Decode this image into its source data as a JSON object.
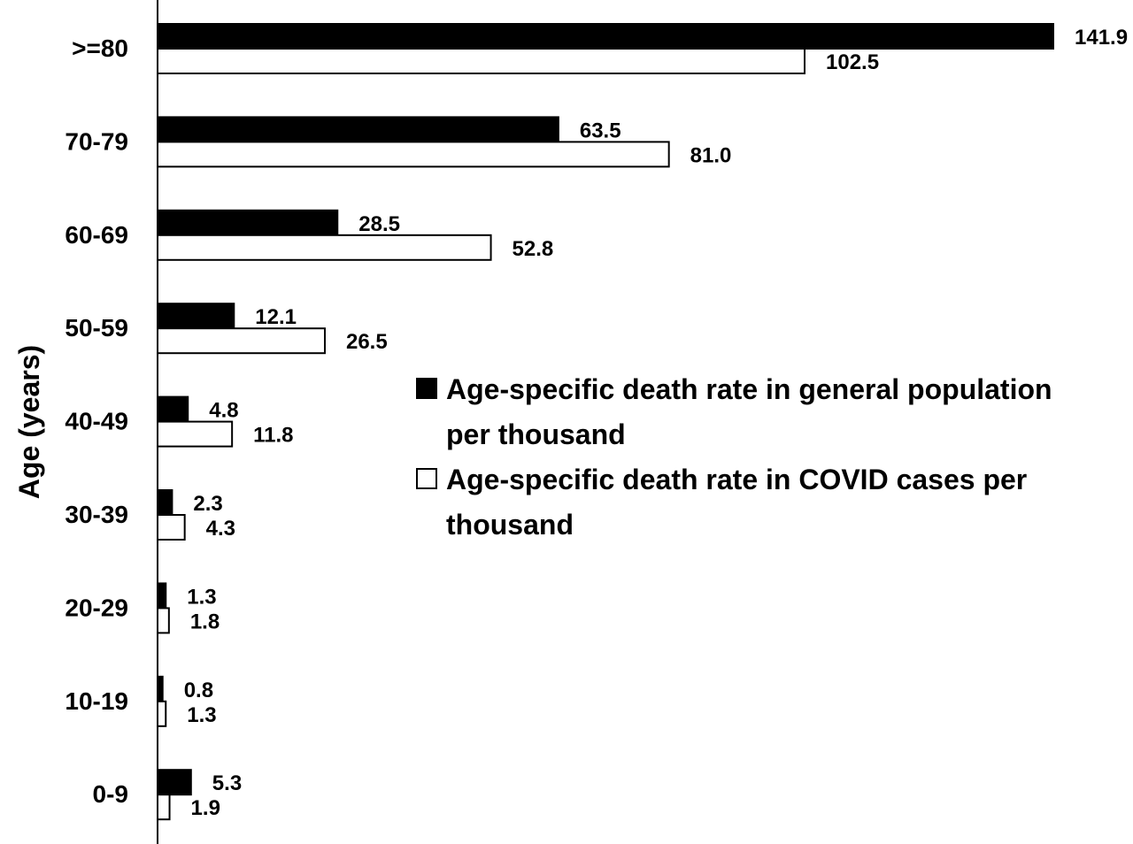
{
  "chart_data": {
    "type": "bar",
    "orientation": "horizontal",
    "categories": [
      ">=80",
      "70-79",
      "60-69",
      "50-59",
      "40-49",
      "30-39",
      "20-29",
      "10-19",
      "0-9"
    ],
    "series": [
      {
        "name": "Age-specific death rate in general population per thousand",
        "legend_lines": [
          "Age-specific death rate in general population",
          "per thousand"
        ],
        "fill": "#000000",
        "values": [
          141.9,
          63.5,
          28.5,
          12.1,
          4.8,
          2.3,
          1.3,
          0.8,
          5.3
        ],
        "labels": [
          "141.9",
          "63.5",
          "28.5",
          "12.1",
          "4.8",
          "2.3",
          "1.3",
          "0.8",
          "5.3"
        ]
      },
      {
        "name": "Age-specific death rate in COVID cases per thousand",
        "legend_lines": [
          "Age-specific death rate in COVID cases per",
          "thousand"
        ],
        "fill": "#ffffff",
        "values": [
          102.5,
          81.0,
          52.8,
          26.5,
          11.8,
          4.3,
          1.8,
          1.3,
          1.9
        ],
        "labels": [
          "102.5",
          "81.0",
          "52.8",
          "26.5",
          "11.8",
          "4.3",
          "1.8",
          "1.3",
          "1.9"
        ]
      }
    ],
    "ylabel": "Age (years)",
    "xlabel": "",
    "xlim": [
      0,
      141.9
    ],
    "grid": false,
    "legend_position": "right"
  }
}
